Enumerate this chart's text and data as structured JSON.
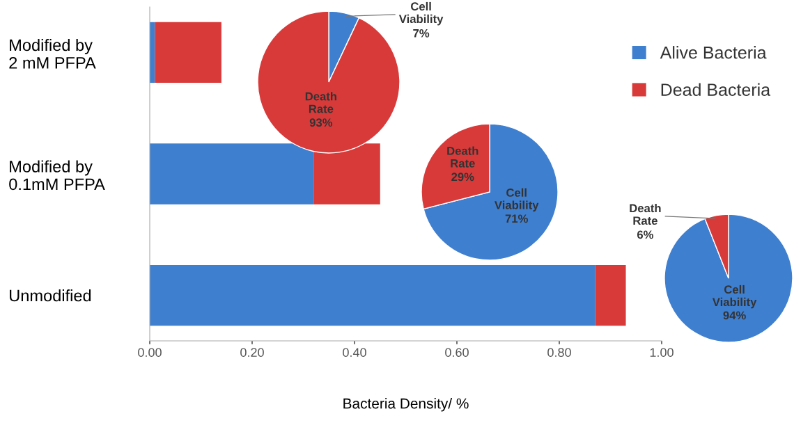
{
  "chart_data": [
    {
      "type": "bar",
      "orientation": "horizontal",
      "stacked": true,
      "xlabel": "Bacteria Density/ %",
      "categories": [
        "Modified by\n2 mM PFPA",
        "Modified by\n0.1mM PFPA",
        "Unmodified"
      ],
      "series": [
        {
          "name": "Alive Bacteria",
          "color": "#3f7fd0",
          "values": [
            0.01,
            0.32,
            0.87
          ]
        },
        {
          "name": "Dead Bacteria",
          "color": "#d83a3a",
          "values": [
            0.13,
            0.13,
            0.06
          ]
        }
      ],
      "xlim": [
        0,
        1
      ],
      "xticks": [
        {
          "value": 0,
          "label": "0.00"
        },
        {
          "value": 0.2,
          "label": "0.20"
        },
        {
          "value": 0.4,
          "label": "0.40"
        },
        {
          "value": 0.6,
          "label": "0.60"
        },
        {
          "value": 0.8,
          "label": "0.80"
        },
        {
          "value": 1,
          "label": "1.00"
        }
      ],
      "legend": "top right",
      "grid": false
    },
    {
      "type": "pie",
      "categories": [
        "Cell Viability",
        "Death Rate"
      ],
      "values": [
        7,
        93
      ],
      "value_labels": [
        "7%",
        "93%"
      ],
      "colors": [
        "#3f7fd0",
        "#d83a3a"
      ]
    },
    {
      "type": "pie",
      "categories": [
        "Cell Viability",
        "Death Rate"
      ],
      "values": [
        71,
        29
      ],
      "value_labels": [
        "71%",
        "29%"
      ],
      "colors": [
        "#3f7fd0",
        "#d83a3a"
      ]
    },
    {
      "type": "pie",
      "categories": [
        "Cell Viability",
        "Death Rate"
      ],
      "values": [
        94,
        6
      ],
      "value_labels": [
        "94%",
        "6%"
      ],
      "colors": [
        "#3f7fd0",
        "#d83a3a"
      ]
    }
  ]
}
